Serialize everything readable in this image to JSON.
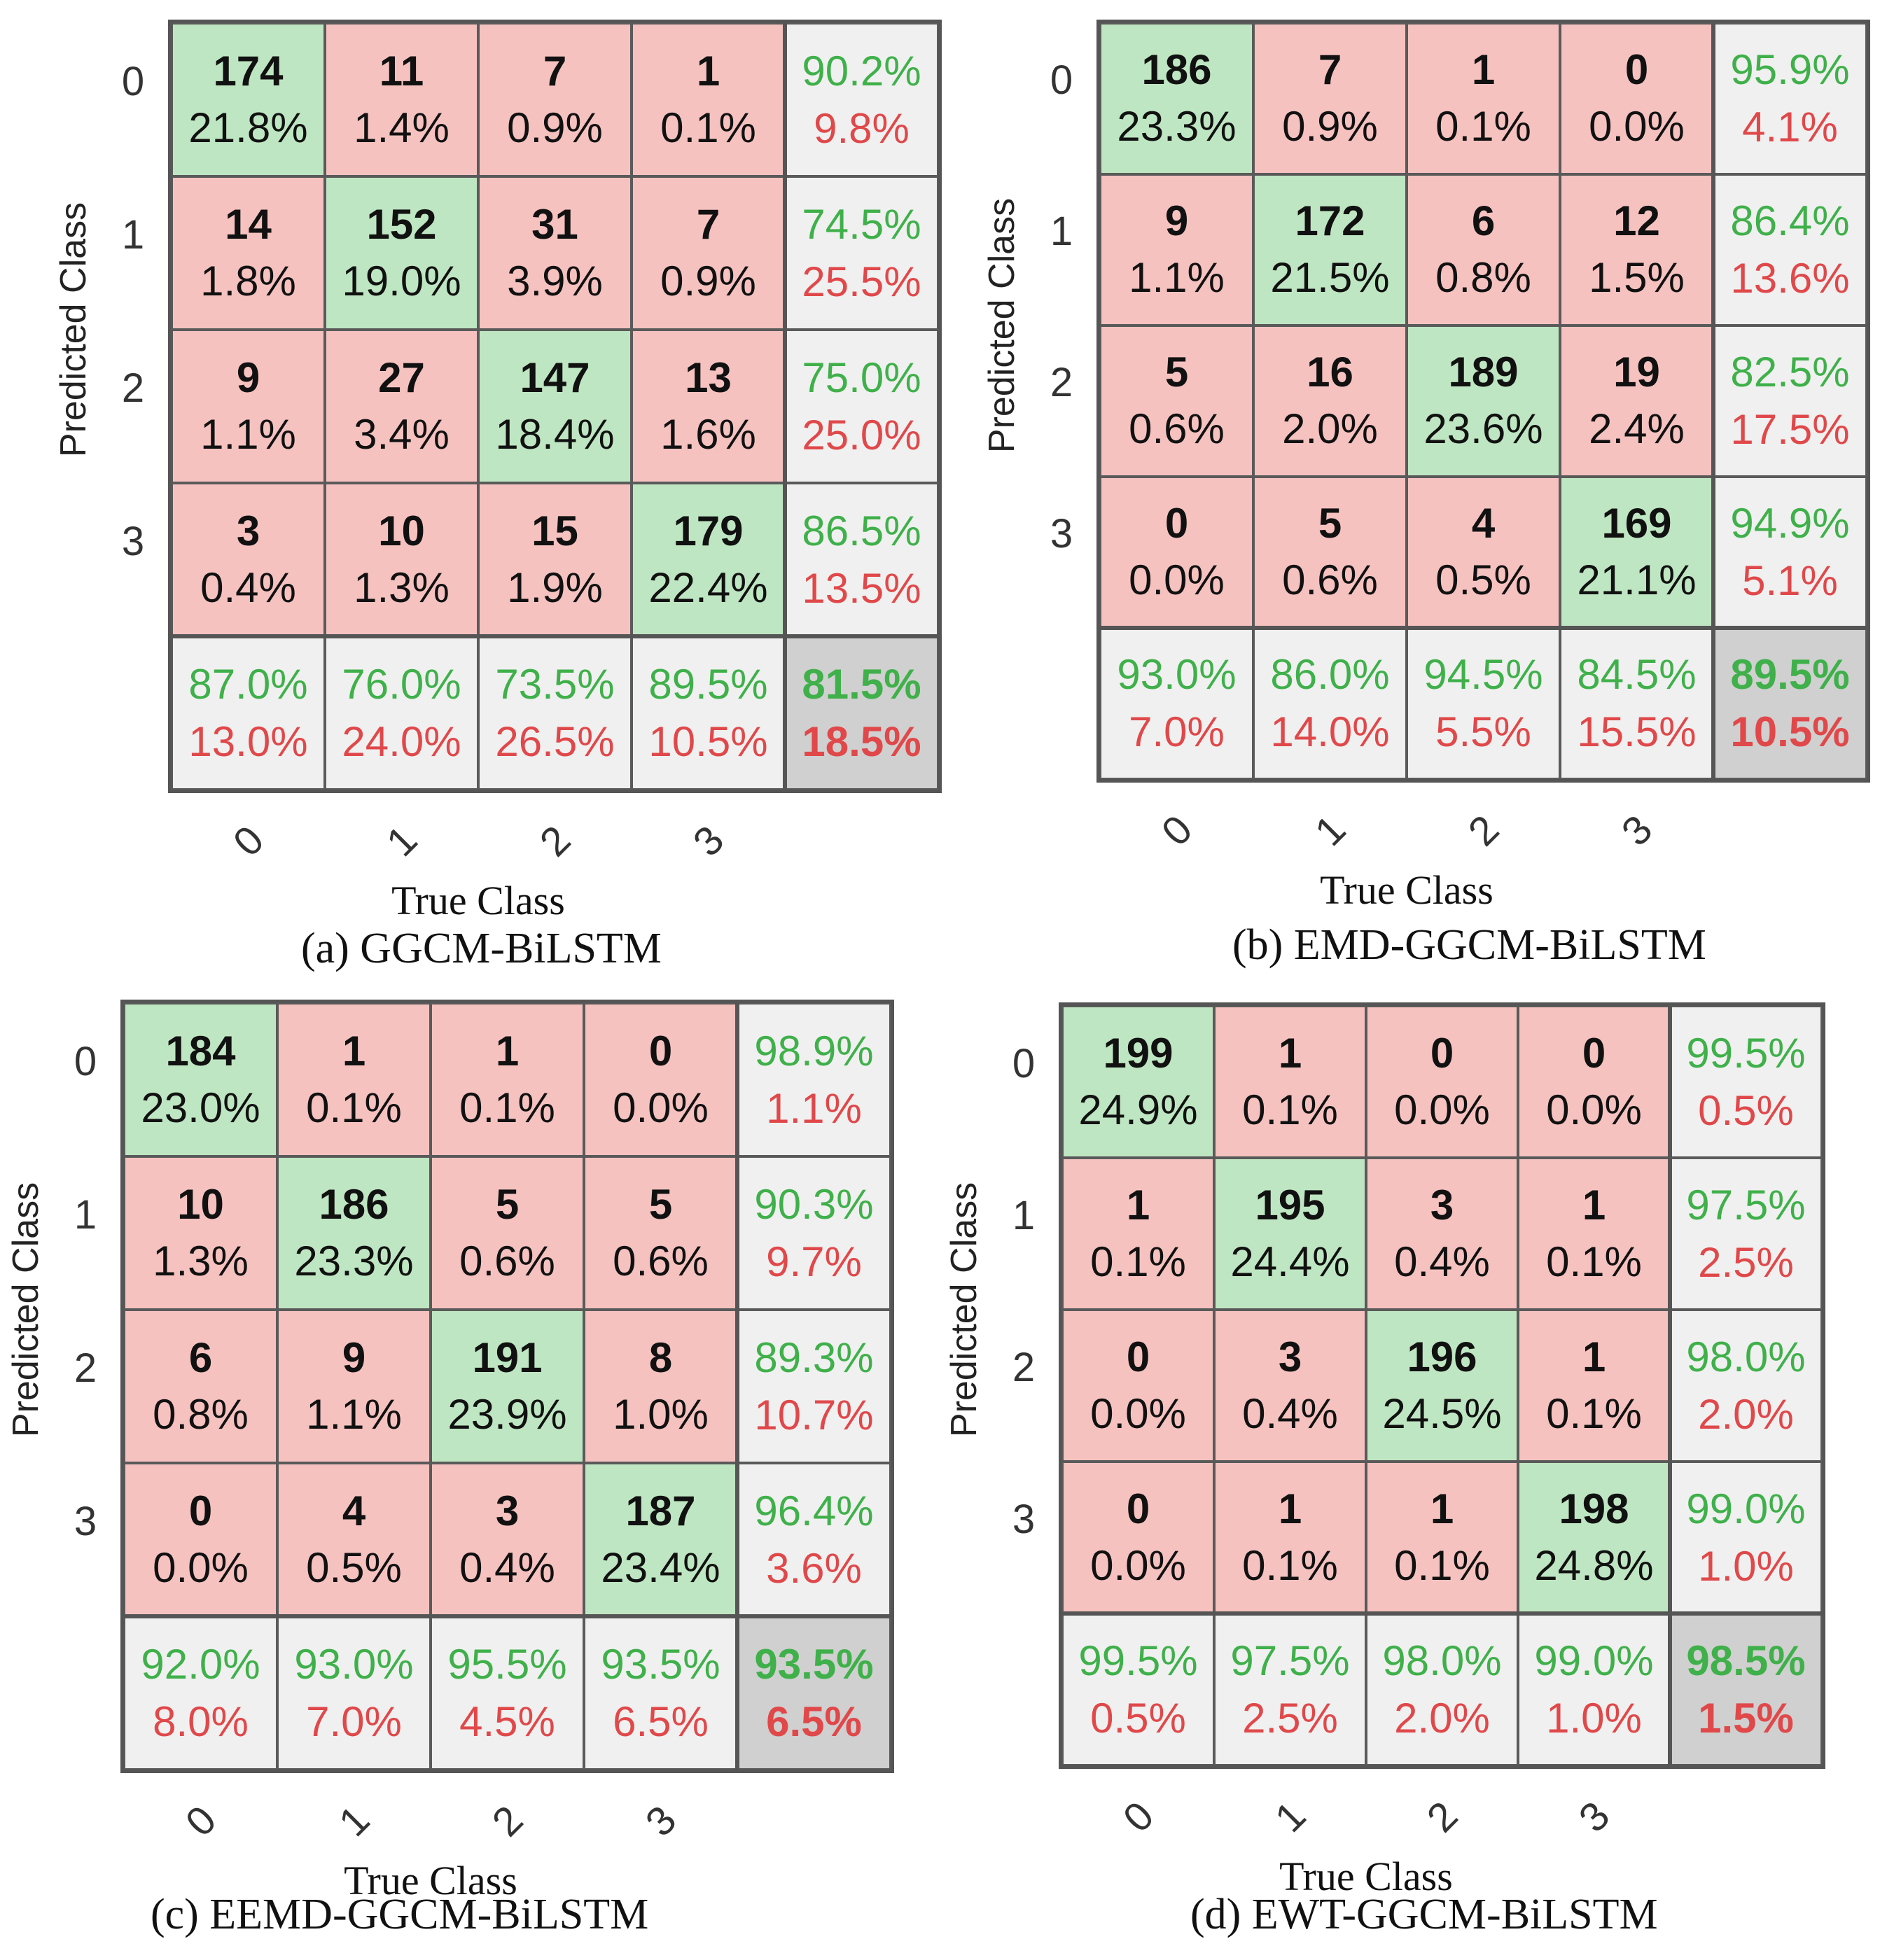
{
  "chart_data": [
    {
      "type": "heatmap",
      "caption": "(a)  GGCM-BiLSTM",
      "xlabel": "True Class",
      "ylabel": "Predicted Class",
      "classes": [
        "0",
        "1",
        "2",
        "3"
      ],
      "counts": [
        [
          174,
          11,
          7,
          1
        ],
        [
          14,
          152,
          31,
          7
        ],
        [
          9,
          27,
          147,
          13
        ],
        [
          3,
          10,
          15,
          179
        ]
      ],
      "cell_pct": [
        [
          "21.8%",
          "1.4%",
          "0.9%",
          "0.1%"
        ],
        [
          "1.8%",
          "19.0%",
          "3.9%",
          "0.9%"
        ],
        [
          "1.1%",
          "3.4%",
          "18.4%",
          "1.6%"
        ],
        [
          "0.4%",
          "1.3%",
          "1.9%",
          "22.4%"
        ]
      ],
      "row_summary": [
        [
          "90.2%",
          "9.8%"
        ],
        [
          "74.5%",
          "25.5%"
        ],
        [
          "75.0%",
          "25.0%"
        ],
        [
          "86.5%",
          "13.5%"
        ]
      ],
      "col_summary": [
        [
          "87.0%",
          "13.0%"
        ],
        [
          "76.0%",
          "24.0%"
        ],
        [
          "73.5%",
          "26.5%"
        ],
        [
          "89.5%",
          "10.5%"
        ]
      ],
      "overall": [
        "81.5%",
        "18.5%"
      ]
    },
    {
      "type": "heatmap",
      "caption": "(b)  EMD-GGCM-BiLSTM",
      "xlabel": "True Class",
      "ylabel": "Predicted Class",
      "classes": [
        "0",
        "1",
        "2",
        "3"
      ],
      "counts": [
        [
          186,
          7,
          1,
          0
        ],
        [
          9,
          172,
          6,
          12
        ],
        [
          5,
          16,
          189,
          19
        ],
        [
          0,
          5,
          4,
          169
        ]
      ],
      "cell_pct": [
        [
          "23.3%",
          "0.9%",
          "0.1%",
          "0.0%"
        ],
        [
          "1.1%",
          "21.5%",
          "0.8%",
          "1.5%"
        ],
        [
          "0.6%",
          "2.0%",
          "23.6%",
          "2.4%"
        ],
        [
          "0.0%",
          "0.6%",
          "0.5%",
          "21.1%"
        ]
      ],
      "row_summary": [
        [
          "95.9%",
          "4.1%"
        ],
        [
          "86.4%",
          "13.6%"
        ],
        [
          "82.5%",
          "17.5%"
        ],
        [
          "94.9%",
          "5.1%"
        ]
      ],
      "col_summary": [
        [
          "93.0%",
          "7.0%"
        ],
        [
          "86.0%",
          "14.0%"
        ],
        [
          "94.5%",
          "5.5%"
        ],
        [
          "84.5%",
          "15.5%"
        ]
      ],
      "overall": [
        "89.5%",
        "10.5%"
      ]
    },
    {
      "type": "heatmap",
      "caption": "(c) EEMD-GGCM-BiLSTM",
      "xlabel": "True Class",
      "ylabel": "Predicted Class",
      "classes": [
        "0",
        "1",
        "2",
        "3"
      ],
      "counts": [
        [
          184,
          1,
          1,
          0
        ],
        [
          10,
          186,
          5,
          5
        ],
        [
          6,
          9,
          191,
          8
        ],
        [
          0,
          4,
          3,
          187
        ]
      ],
      "cell_pct": [
        [
          "23.0%",
          "0.1%",
          "0.1%",
          "0.0%"
        ],
        [
          "1.3%",
          "23.3%",
          "0.6%",
          "0.6%"
        ],
        [
          "0.8%",
          "1.1%",
          "23.9%",
          "1.0%"
        ],
        [
          "0.0%",
          "0.5%",
          "0.4%",
          "23.4%"
        ]
      ],
      "row_summary": [
        [
          "98.9%",
          "1.1%"
        ],
        [
          "90.3%",
          "9.7%"
        ],
        [
          "89.3%",
          "10.7%"
        ],
        [
          "96.4%",
          "3.6%"
        ]
      ],
      "col_summary": [
        [
          "92.0%",
          "8.0%"
        ],
        [
          "93.0%",
          "7.0%"
        ],
        [
          "95.5%",
          "4.5%"
        ],
        [
          "93.5%",
          "6.5%"
        ]
      ],
      "overall": [
        "93.5%",
        "6.5%"
      ]
    },
    {
      "type": "heatmap",
      "caption": "(d) EWT-GGCM-BiLSTM",
      "xlabel": "True Class",
      "ylabel": "Predicted Class",
      "classes": [
        "0",
        "1",
        "2",
        "3"
      ],
      "counts": [
        [
          199,
          1,
          0,
          0
        ],
        [
          1,
          195,
          3,
          1
        ],
        [
          0,
          3,
          196,
          1
        ],
        [
          0,
          1,
          1,
          198
        ]
      ],
      "cell_pct": [
        [
          "24.9%",
          "0.1%",
          "0.0%",
          "0.0%"
        ],
        [
          "0.1%",
          "24.4%",
          "0.4%",
          "0.1%"
        ],
        [
          "0.0%",
          "0.4%",
          "24.5%",
          "0.1%"
        ],
        [
          "0.0%",
          "0.1%",
          "0.1%",
          "24.8%"
        ]
      ],
      "row_summary": [
        [
          "99.5%",
          "0.5%"
        ],
        [
          "97.5%",
          "2.5%"
        ],
        [
          "98.0%",
          "2.0%"
        ],
        [
          "99.0%",
          "1.0%"
        ]
      ],
      "col_summary": [
        [
          "99.5%",
          "0.5%"
        ],
        [
          "97.5%",
          "2.5%"
        ],
        [
          "98.0%",
          "2.0%"
        ],
        [
          "99.0%",
          "1.0%"
        ]
      ],
      "overall": [
        "98.5%",
        "1.5%"
      ]
    }
  ]
}
